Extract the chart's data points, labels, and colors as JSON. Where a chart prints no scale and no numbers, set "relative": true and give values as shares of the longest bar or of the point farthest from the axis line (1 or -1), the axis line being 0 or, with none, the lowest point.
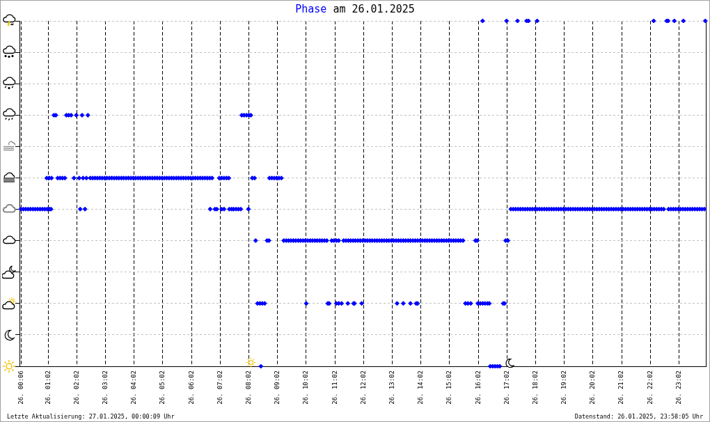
{
  "chart_data": {
    "type": "scatter",
    "title": "Phase am 26.01.2025",
    "relative": true,
    "grid": true,
    "marker": "diamond",
    "color": "#0000ff",
    "xlim": [
      "2025-01-26T00:02",
      "2025-01-26T23:58"
    ],
    "xticks": [
      {
        "value": "2025-01-26T00:06",
        "label": "26. 00:06"
      },
      {
        "value": "2025-01-26T01:02",
        "label": "26. 01:02"
      },
      {
        "value": "2025-01-26T02:02",
        "label": "26. 02:02"
      },
      {
        "value": "2025-01-26T03:02",
        "label": "26. 03:02"
      },
      {
        "value": "2025-01-26T04:02",
        "label": "26. 04:02"
      },
      {
        "value": "2025-01-26T05:02",
        "label": "26. 05:02"
      },
      {
        "value": "2025-01-26T06:02",
        "label": "26. 06:02"
      },
      {
        "value": "2025-01-26T07:02",
        "label": "26. 07:02"
      },
      {
        "value": "2025-01-26T08:02",
        "label": "26. 08:02"
      },
      {
        "value": "2025-01-26T09:02",
        "label": "26. 09:02"
      },
      {
        "value": "2025-01-26T10:02",
        "label": "26. 10:02"
      },
      {
        "value": "2025-01-26T11:02",
        "label": "26. 11:02"
      },
      {
        "value": "2025-01-26T12:02",
        "label": "26. 12:02"
      },
      {
        "value": "2025-01-26T13:02",
        "label": "26. 13:02"
      },
      {
        "value": "2025-01-26T14:02",
        "label": "26. 14:02"
      },
      {
        "value": "2025-01-26T15:02",
        "label": "26. 15:02"
      },
      {
        "value": "2025-01-26T16:02",
        "label": "26. 16:02"
      },
      {
        "value": "2025-01-26T17:02",
        "label": "26. 17:02"
      },
      {
        "value": "2025-01-26T18:02",
        "label": "26. 18:02"
      },
      {
        "value": "2025-01-26T19:02",
        "label": "26. 19:02"
      },
      {
        "value": "2025-01-26T20:02",
        "label": "26. 20:02"
      },
      {
        "value": "2025-01-26T21:02",
        "label": "26. 21:02"
      },
      {
        "value": "2025-01-26T22:02",
        "label": "26. 22:02"
      },
      {
        "value": "2025-01-26T23:02",
        "label": "26. 23:02"
      }
    ],
    "x": [
      "2025-01-26T00:05",
      "2025-01-26T00:10",
      "2025-01-26T00:15",
      "2025-01-26T00:20",
      "2025-01-26T00:25",
      "2025-01-26T00:30",
      "2025-01-26T00:35",
      "2025-01-26T00:40",
      "2025-01-26T00:45",
      "2025-01-26T00:50",
      "2025-01-26T00:55",
      "2025-01-26T01:00",
      "2025-01-26T01:05",
      "2025-01-26T01:08",
      "2025-01-26T02:09",
      "2025-01-26T02:19",
      "2025-01-26T06:41",
      "2025-01-26T06:51",
      "2025-01-26T06:55",
      "2025-01-26T07:05",
      "2025-01-26T07:10",
      "2025-01-26T07:21",
      "2025-01-26T07:26",
      "2025-01-26T07:30",
      "2025-01-26T07:35",
      "2025-01-26T07:40",
      "2025-01-26T07:45",
      "2025-01-26T08:01",
      "2025-01-26T17:10",
      "2025-01-26T17:15",
      "2025-01-26T17:20",
      "2025-01-26T17:25",
      "2025-01-26T17:30",
      "2025-01-26T17:35",
      "2025-01-26T17:40",
      "2025-01-26T17:45",
      "2025-01-26T17:50",
      "2025-01-26T17:55",
      "2025-01-26T18:00",
      "2025-01-26T18:05",
      "2025-01-26T18:10",
      "2025-01-26T18:15",
      "2025-01-26T18:20",
      "2025-01-26T18:25",
      "2025-01-26T18:30",
      "2025-01-26T18:35",
      "2025-01-26T18:40",
      "2025-01-26T18:45",
      "2025-01-26T18:50",
      "2025-01-26T18:55",
      "2025-01-26T19:00",
      "2025-01-26T19:05",
      "2025-01-26T19:10",
      "2025-01-26T19:15",
      "2025-01-26T19:20",
      "2025-01-26T19:25",
      "2025-01-26T19:30",
      "2025-01-26T19:35",
      "2025-01-26T19:40",
      "2025-01-26T19:45",
      "2025-01-26T19:50",
      "2025-01-26T19:55",
      "2025-01-26T20:00",
      "2025-01-26T20:05",
      "2025-01-26T20:10",
      "2025-01-26T20:15",
      "2025-01-26T20:20",
      "2025-01-26T20:25",
      "2025-01-26T20:30",
      "2025-01-26T20:35",
      "2025-01-26T20:40",
      "2025-01-26T20:45",
      "2025-01-26T20:50",
      "2025-01-26T20:55",
      "2025-01-26T21:00",
      "2025-01-26T21:05",
      "2025-01-26T21:10",
      "2025-01-26T21:15",
      "2025-01-26T21:20",
      "2025-01-26T21:25",
      "2025-01-26T21:30",
      "2025-01-26T21:35",
      "2025-01-26T21:40",
      "2025-01-26T21:45",
      "2025-01-26T21:50",
      "2025-01-26T21:55",
      "2025-01-26T22:00",
      "2025-01-26T22:05",
      "2025-01-26T22:10",
      "2025-01-26T22:15",
      "2025-01-26T22:20",
      "2025-01-26T22:25",
      "2025-01-26T22:30",
      "2025-01-26T22:40",
      "2025-01-26T22:45",
      "2025-01-26T22:50",
      "2025-01-26T22:55",
      "2025-01-26T23:00",
      "2025-01-26T23:05",
      "2025-01-26T23:10",
      "2025-01-26T23:15",
      "2025-01-26T23:20",
      "2025-01-26T23:25",
      "2025-01-26T23:30",
      "2025-01-26T23:35",
      "2025-01-26T23:40",
      "2025-01-26T23:45",
      "2025-01-26T23:50",
      "2025-01-26T23:55",
      "2025-01-26T00:59",
      "2025-01-26T01:04",
      "2025-01-26T01:09",
      "2025-01-26T01:22",
      "2025-01-26T01:27",
      "2025-01-26T01:32",
      "2025-01-26T01:37",
      "2025-01-26T01:56",
      "2025-01-26T02:07",
      "2025-01-26T02:15",
      "2025-01-26T02:22",
      "2025-01-26T02:30",
      "2025-01-26T02:35",
      "2025-01-26T02:40",
      "2025-01-26T02:45",
      "2025-01-26T02:50",
      "2025-01-26T02:55",
      "2025-01-26T03:00",
      "2025-01-26T03:05",
      "2025-01-26T03:10",
      "2025-01-26T03:15",
      "2025-01-26T03:20",
      "2025-01-26T03:25",
      "2025-01-26T03:30",
      "2025-01-26T03:35",
      "2025-01-26T03:40",
      "2025-01-26T03:45",
      "2025-01-26T03:50",
      "2025-01-26T03:55",
      "2025-01-26T04:00",
      "2025-01-26T04:05",
      "2025-01-26T04:10",
      "2025-01-26T04:15",
      "2025-01-26T04:20",
      "2025-01-26T04:25",
      "2025-01-26T04:30",
      "2025-01-26T04:35",
      "2025-01-26T04:40",
      "2025-01-26T04:45",
      "2025-01-26T04:50",
      "2025-01-26T04:55",
      "2025-01-26T05:00",
      "2025-01-26T05:05",
      "2025-01-26T05:10",
      "2025-01-26T05:15",
      "2025-01-26T05:20",
      "2025-01-26T05:25",
      "2025-01-26T05:30",
      "2025-01-26T05:35",
      "2025-01-26T05:40",
      "2025-01-26T05:45",
      "2025-01-26T05:50",
      "2025-01-26T05:55",
      "2025-01-26T06:00",
      "2025-01-26T06:05",
      "2025-01-26T06:10",
      "2025-01-26T06:15",
      "2025-01-26T06:20",
      "2025-01-26T06:25",
      "2025-01-26T06:30",
      "2025-01-26T06:35",
      "2025-01-26T06:40",
      "2025-01-26T06:45",
      "2025-01-26T07:00",
      "2025-01-26T07:05",
      "2025-01-26T07:10",
      "2025-01-26T07:15",
      "2025-01-26T07:20",
      "2025-01-26T08:09",
      "2025-01-26T08:14",
      "2025-01-26T08:45",
      "2025-01-26T08:50",
      "2025-01-26T08:55",
      "2025-01-26T09:00",
      "2025-01-26T09:05",
      "2025-01-26T09:10",
      "2025-01-26T01:14",
      "2025-01-26T01:18",
      "2025-01-26T01:40",
      "2025-01-26T01:45",
      "2025-01-26T01:50",
      "2025-01-26T02:01",
      "2025-01-26T02:13",
      "2025-01-26T02:25",
      "2025-01-26T07:47",
      "2025-01-26T07:52",
      "2025-01-26T07:57",
      "2025-01-26T08:02",
      "2025-01-26T08:06",
      "2025-01-26T08:16",
      "2025-01-26T08:40",
      "2025-01-26T08:44",
      "2025-01-26T09:15",
      "2025-01-26T09:20",
      "2025-01-26T09:25",
      "2025-01-26T09:30",
      "2025-01-26T09:35",
      "2025-01-26T09:40",
      "2025-01-26T09:45",
      "2025-01-26T09:50",
      "2025-01-26T09:55",
      "2025-01-26T10:00",
      "2025-01-26T10:05",
      "2025-01-26T10:10",
      "2025-01-26T10:15",
      "2025-01-26T10:20",
      "2025-01-26T10:25",
      "2025-01-26T10:30",
      "2025-01-26T10:35",
      "2025-01-26T10:40",
      "2025-01-26T10:45",
      "2025-01-26T10:55",
      "2025-01-26T11:00",
      "2025-01-26T11:05",
      "2025-01-26T11:10",
      "2025-01-26T11:20",
      "2025-01-26T11:25",
      "2025-01-26T11:30",
      "2025-01-26T11:35",
      "2025-01-26T11:40",
      "2025-01-26T11:45",
      "2025-01-26T11:50",
      "2025-01-26T11:55",
      "2025-01-26T12:00",
      "2025-01-26T12:05",
      "2025-01-26T12:10",
      "2025-01-26T12:15",
      "2025-01-26T12:20",
      "2025-01-26T12:25",
      "2025-01-26T12:30",
      "2025-01-26T12:35",
      "2025-01-26T12:40",
      "2025-01-26T12:45",
      "2025-01-26T12:50",
      "2025-01-26T12:55",
      "2025-01-26T13:00",
      "2025-01-26T13:05",
      "2025-01-26T13:10",
      "2025-01-26T13:15",
      "2025-01-26T13:20",
      "2025-01-26T13:25",
      "2025-01-26T13:30",
      "2025-01-26T13:35",
      "2025-01-26T13:40",
      "2025-01-26T13:45",
      "2025-01-26T13:50",
      "2025-01-26T13:55",
      "2025-01-26T14:00",
      "2025-01-26T14:05",
      "2025-01-26T14:10",
      "2025-01-26T14:15",
      "2025-01-26T14:20",
      "2025-01-26T14:25",
      "2025-01-26T14:30",
      "2025-01-26T14:35",
      "2025-01-26T14:40",
      "2025-01-26T14:45",
      "2025-01-26T14:50",
      "2025-01-26T14:55",
      "2025-01-26T15:00",
      "2025-01-26T15:05",
      "2025-01-26T15:10",
      "2025-01-26T15:15",
      "2025-01-26T15:20",
      "2025-01-26T15:25",
      "2025-01-26T15:30",
      "2025-01-26T15:56",
      "2025-01-26T16:00",
      "2025-01-26T16:59",
      "2025-01-26T17:04",
      "2025-01-26T08:20",
      "2025-01-26T08:25",
      "2025-01-26T08:30",
      "2025-01-26T08:35",
      "2025-01-26T10:02",
      "2025-01-26T10:47",
      "2025-01-26T10:50",
      "2025-01-26T11:05",
      "2025-01-26T11:10",
      "2025-01-26T11:16",
      "2025-01-26T11:29",
      "2025-01-26T11:41",
      "2025-01-26T11:43",
      "2025-01-26T11:58",
      "2025-01-26T13:12",
      "2025-01-26T13:25",
      "2025-01-26T13:40",
      "2025-01-26T13:52",
      "2025-01-26T13:55",
      "2025-01-26T15:35",
      "2025-01-26T15:40",
      "2025-01-26T15:46",
      "2025-01-26T16:01",
      "2025-01-26T16:06",
      "2025-01-26T16:11",
      "2025-01-26T16:16",
      "2025-01-26T16:21",
      "2025-01-26T16:25",
      "2025-01-26T16:54",
      "2025-01-26T16:57",
      "2025-01-26T08:27",
      "2025-01-26T16:27",
      "2025-01-26T16:32",
      "2025-01-26T16:37",
      "2025-01-26T16:42",
      "2025-01-26T16:47",
      "2025-01-26T16:11",
      "2025-01-26T17:01",
      "2025-01-26T17:24",
      "2025-01-26T17:43",
      "2025-01-26T17:47",
      "2025-01-26T18:05",
      "2025-01-26T22:09",
      "2025-01-26T22:36",
      "2025-01-26T22:39",
      "2025-01-26T22:52",
      "2025-01-26T23:11",
      "2025-01-26T23:57"
    ],
    "values": [
      0.455,
      0.455,
      0.455,
      0.455,
      0.455,
      0.455,
      0.455,
      0.455,
      0.455,
      0.455,
      0.455,
      0.455,
      0.455,
      0.455,
      0.455,
      0.455,
      0.455,
      0.455,
      0.455,
      0.455,
      0.455,
      0.455,
      0.455,
      0.455,
      0.455,
      0.455,
      0.455,
      0.455,
      0.455,
      0.455,
      0.455,
      0.455,
      0.455,
      0.455,
      0.455,
      0.455,
      0.455,
      0.455,
      0.455,
      0.455,
      0.455,
      0.455,
      0.455,
      0.455,
      0.455,
      0.455,
      0.455,
      0.455,
      0.455,
      0.455,
      0.455,
      0.455,
      0.455,
      0.455,
      0.455,
      0.455,
      0.455,
      0.455,
      0.455,
      0.455,
      0.455,
      0.455,
      0.455,
      0.455,
      0.455,
      0.455,
      0.455,
      0.455,
      0.455,
      0.455,
      0.455,
      0.455,
      0.455,
      0.455,
      0.455,
      0.455,
      0.455,
      0.455,
      0.455,
      0.455,
      0.455,
      0.455,
      0.455,
      0.455,
      0.455,
      0.455,
      0.455,
      0.455,
      0.455,
      0.455,
      0.455,
      0.455,
      0.455,
      0.455,
      0.455,
      0.455,
      0.455,
      0.455,
      0.455,
      0.455,
      0.455,
      0.455,
      0.455,
      0.455,
      0.455,
      0.455,
      0.455,
      0.455,
      0.455,
      0.545,
      0.545,
      0.545,
      0.545,
      0.545,
      0.545,
      0.545,
      0.545,
      0.545,
      0.545,
      0.545,
      0.545,
      0.545,
      0.545,
      0.545,
      0.545,
      0.545,
      0.545,
      0.545,
      0.545,
      0.545,
      0.545,
      0.545,
      0.545,
      0.545,
      0.545,
      0.545,
      0.545,
      0.545,
      0.545,
      0.545,
      0.545,
      0.545,
      0.545,
      0.545,
      0.545,
      0.545,
      0.545,
      0.545,
      0.545,
      0.545,
      0.545,
      0.545,
      0.545,
      0.545,
      0.545,
      0.545,
      0.545,
      0.545,
      0.545,
      0.545,
      0.545,
      0.545,
      0.545,
      0.545,
      0.545,
      0.545,
      0.545,
      0.545,
      0.545,
      0.545,
      0.545,
      0.545,
      0.545,
      0.545,
      0.545,
      0.545,
      0.545,
      0.545,
      0.545,
      0.545,
      0.545,
      0.545,
      0.545,
      0.545,
      0.545,
      0.727,
      0.727,
      0.727,
      0.727,
      0.727,
      0.727,
      0.727,
      0.727,
      0.727,
      0.727,
      0.727,
      0.727,
      0.727,
      0.364,
      0.364,
      0.364,
      0.364,
      0.364,
      0.364,
      0.364,
      0.364,
      0.364,
      0.364,
      0.364,
      0.364,
      0.364,
      0.364,
      0.364,
      0.364,
      0.364,
      0.364,
      0.364,
      0.364,
      0.364,
      0.364,
      0.364,
      0.364,
      0.364,
      0.364,
      0.364,
      0.364,
      0.364,
      0.364,
      0.364,
      0.364,
      0.364,
      0.364,
      0.364,
      0.364,
      0.364,
      0.364,
      0.364,
      0.364,
      0.364,
      0.364,
      0.364,
      0.364,
      0.364,
      0.364,
      0.364,
      0.364,
      0.364,
      0.364,
      0.364,
      0.364,
      0.364,
      0.364,
      0.364,
      0.364,
      0.364,
      0.364,
      0.364,
      0.364,
      0.364,
      0.364,
      0.364,
      0.364,
      0.364,
      0.364,
      0.364,
      0.364,
      0.364,
      0.364,
      0.364,
      0.364,
      0.364,
      0.364,
      0.364,
      0.364,
      0.364,
      0.364,
      0.364,
      0.364,
      0.364,
      0.182,
      0.182,
      0.182,
      0.182,
      0.182,
      0.182,
      0.182,
      0.182,
      0.182,
      0.182,
      0.182,
      0.182,
      0.182,
      0.182,
      0.182,
      0.182,
      0.182,
      0.182,
      0.182,
      0.182,
      0.182,
      0.182,
      0.182,
      0.182,
      0.182,
      0.182,
      0.182,
      0.182,
      0.182,
      0.182,
      0,
      0,
      0,
      0,
      0,
      0,
      1,
      1,
      1,
      1,
      1,
      1,
      1,
      1,
      1,
      1,
      1,
      1
    ],
    "annotations": [
      "Letzte Aktualisierung: 27.01.2025, 00:00:09 Uhr",
      "Datenstand: 26.01.2025, 23:58:05 Uhr"
    ]
  }
}
